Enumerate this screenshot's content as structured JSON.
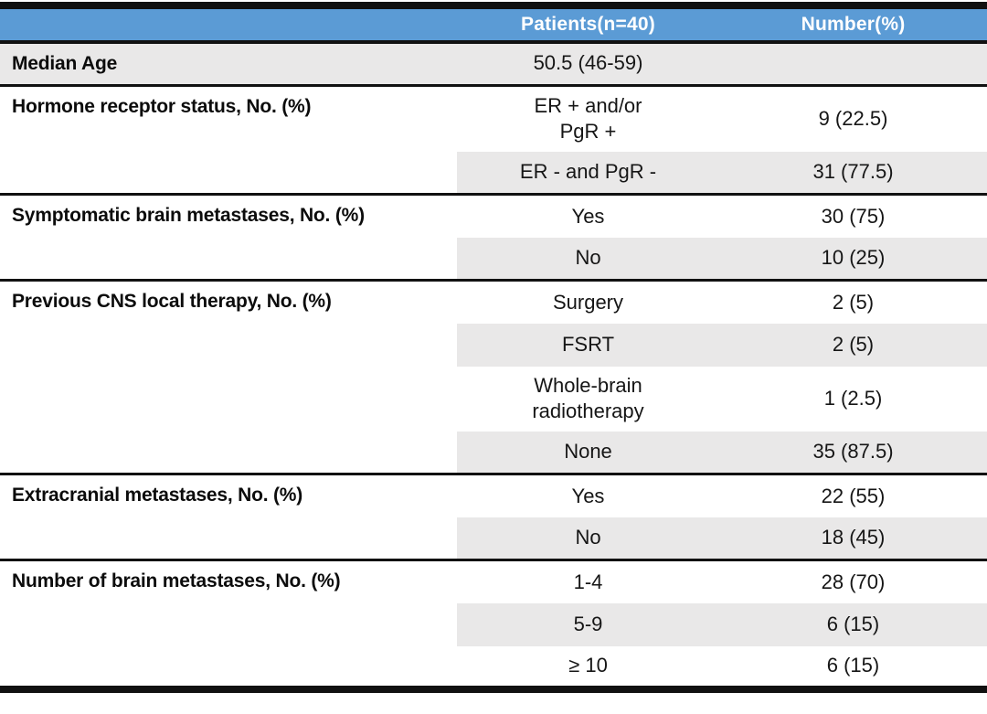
{
  "colors": {
    "header_bg": "#5B9BD5",
    "band_bg": "#E9E8E8",
    "line": "#111111",
    "header_text": "#FFFFFF"
  },
  "table": {
    "header": {
      "col1": "",
      "col2": "Patients(n=40)",
      "col3": "Number(%)"
    },
    "sections": [
      {
        "label": "Median Age",
        "rows": [
          {
            "value": "50.5 (46-59)",
            "number": ""
          }
        ]
      },
      {
        "label": "Hormone receptor status, No. (%)",
        "rows": [
          {
            "value": "ER + and/or\nPgR +",
            "number": "9 (22.5)"
          },
          {
            "value": "ER - and PgR -",
            "number": "31 (77.5)"
          }
        ]
      },
      {
        "label": "Symptomatic brain metastases, No. (%)",
        "rows": [
          {
            "value": "Yes",
            "number": "30 (75)"
          },
          {
            "value": "No",
            "number": "10 (25)"
          }
        ]
      },
      {
        "label": "Previous CNS local therapy, No. (%)",
        "rows": [
          {
            "value": "Surgery",
            "number": "2 (5)"
          },
          {
            "value": "FSRT",
            "number": "2 (5)"
          },
          {
            "value": "Whole-brain\nradiotherapy",
            "number": "1 (2.5)"
          },
          {
            "value": "None",
            "number": "35 (87.5)"
          }
        ]
      },
      {
        "label": "Extracranial metastases, No. (%)",
        "rows": [
          {
            "value": "Yes",
            "number": "22 (55)"
          },
          {
            "value": "No",
            "number": "18 (45)"
          }
        ]
      },
      {
        "label": "Number of brain metastases, No. (%)",
        "rows": [
          {
            "value": "1-4",
            "number": "28 (70)"
          },
          {
            "value": "5-9",
            "number": "6 (15)"
          },
          {
            "value": "≥ 10",
            "number": "6 (15)"
          }
        ]
      }
    ]
  }
}
